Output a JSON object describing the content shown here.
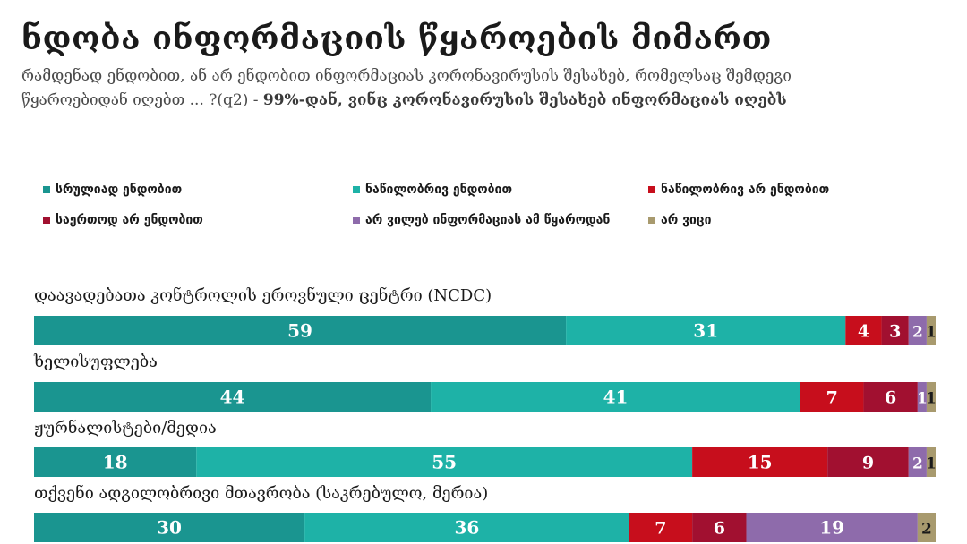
{
  "title": "ნდობა ინფორმაციის წყაროების მიმართ",
  "subtitle": {
    "question": "რამდენად ენდობით, ან არ ენდობით ინფორმაციას კორონავირუსის შესახებ, რომელსაც შემდეგი წყაროებიდან იღებთ ... ?(q2)",
    "separator": " - ",
    "base": "99%-დან, ვინც კორონავირუსის შესახებ ინფორმაციას იღებს"
  },
  "chart_data": {
    "type": "bar",
    "orientation": "horizontal",
    "stacked": true,
    "categories": [
      "დაავადებათა კონტროლის ეროვნული ცენტრი (NCDC)",
      "ხელისუფლება",
      "ჟურნალისტები/მედია",
      "თქვენი ადგილობრივი მთავრობა (საკრებულო, მერია)"
    ],
    "series": [
      {
        "name": "სრულიად ენდობით",
        "color": "#1a9590",
        "values": [
          59,
          44,
          18,
          30
        ]
      },
      {
        "name": "ნაწილობრივ ენდობით",
        "color": "#1eb2a7",
        "values": [
          31,
          41,
          55,
          36
        ]
      },
      {
        "name": "ნაწილობრივ არ ენდობით",
        "color": "#c70e1c",
        "values": [
          4,
          7,
          15,
          7
        ]
      },
      {
        "name": "საერთოდ არ ენდობით",
        "color": "#a11030",
        "values": [
          3,
          6,
          9,
          6
        ]
      },
      {
        "name": "არ ვილებ ინფორმაციას ამ წყაროდან",
        "color": "#8e6bab",
        "values": [
          2,
          1,
          2,
          19
        ]
      },
      {
        "name": "არ ვიცი",
        "color": "#a89a6e",
        "values": [
          1,
          1,
          1,
          2
        ]
      }
    ],
    "xlim": [
      0,
      100
    ],
    "grid": false,
    "legend_position": "top"
  }
}
